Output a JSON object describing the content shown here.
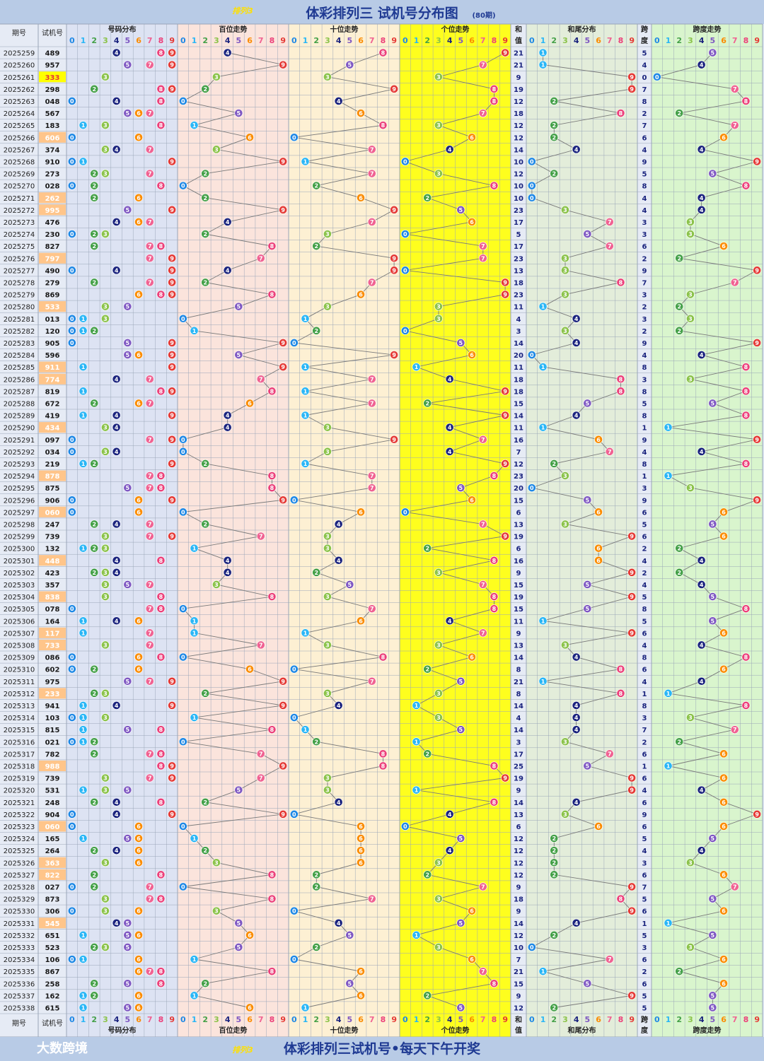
{
  "header": {
    "logo": "排列3",
    "title": "体彩排列三 试机号分布图",
    "subtitle": "(80期)"
  },
  "columns": {
    "period": "期号",
    "trial": "试机号",
    "num_dist": "号码分布",
    "hundreds": "百位走势",
    "tens": "十位走势",
    "units": "个位走势",
    "sum_top": "和",
    "sum_bottom": "值",
    "sum_tail": "和尾分布",
    "span_top": "跨",
    "span_bottom": "度",
    "span_trend": "跨度走势"
  },
  "footer": {
    "brand": "大数跨境",
    "logo": "排列3",
    "slogan": "体彩排列三试机号•每天下午开奖"
  },
  "colors": {
    "digits": [
      "#1e88e5",
      "#29b6f6",
      "#43a047",
      "#8bc34a",
      "#1a237e",
      "#7e57c2",
      "#fb8c00",
      "#f06292",
      "#ec407a",
      "#e53935"
    ],
    "group3_highlight": "#ffc58a",
    "title_bar": "#b8cbe6",
    "num_dist_bg": "#dde3f3",
    "hundreds_bg": "#fbe4dc",
    "tens_bg": "#fdf0d3",
    "units_bg": "#fefe1e",
    "sum_tail_bg": "#e3edda",
    "span_bg": "#d9f5cd"
  },
  "chart_data": {
    "type": "table",
    "title": "体彩排列三 试机号分布图",
    "periods": [
      "2025259",
      "2025260",
      "2025261",
      "2025262",
      "2025263",
      "2025264",
      "2025265",
      "2025266",
      "2025267",
      "2025268",
      "2025269",
      "2025270",
      "2025271",
      "2025272",
      "2025273",
      "2025274",
      "2025275",
      "2025276",
      "2025277",
      "2025278",
      "2025279",
      "2025280",
      "2025281",
      "2025282",
      "2025283",
      "2025284",
      "2025285",
      "2025286",
      "2025287",
      "2025288",
      "2025289",
      "2025290",
      "2025291",
      "2025292",
      "2025293",
      "2025294",
      "2025295",
      "2025296",
      "2025297",
      "2025298",
      "2025299",
      "2025300",
      "2025301",
      "2025302",
      "2025303",
      "2025304",
      "2025305",
      "2025306",
      "2025307",
      "2025308",
      "2025309",
      "2025310",
      "2025311",
      "2025312",
      "2025313",
      "2025314",
      "2025315",
      "2025316",
      "2025317",
      "2025318",
      "2025319",
      "2025320",
      "2025321",
      "2025322",
      "2025323",
      "2025324",
      "2025325",
      "2025326",
      "2025327",
      "2025328",
      "2025329",
      "2025330",
      "2025331",
      "2025332",
      "2025333",
      "2025334",
      "2025335",
      "2025336",
      "2025337",
      "2025338"
    ],
    "trial_numbers": [
      "489",
      "957",
      "333",
      "298",
      "048",
      "567",
      "183",
      "606",
      "374",
      "910",
      "273",
      "028",
      "262",
      "995",
      "476",
      "230",
      "827",
      "797",
      "490",
      "279",
      "869",
      "533",
      "013",
      "120",
      "905",
      "596",
      "911",
      "774",
      "819",
      "672",
      "419",
      "434",
      "097",
      "034",
      "219",
      "878",
      "875",
      "906",
      "060",
      "247",
      "739",
      "132",
      "448",
      "423",
      "357",
      "838",
      "078",
      "164",
      "117",
      "733",
      "086",
      "602",
      "975",
      "233",
      "941",
      "103",
      "815",
      "021",
      "782",
      "988",
      "739",
      "531",
      "248",
      "904",
      "060",
      "165",
      "264",
      "363",
      "822",
      "027",
      "873",
      "306",
      "545",
      "651",
      "523",
      "106",
      "867",
      "258",
      "162",
      "615"
    ],
    "sums": [
      21,
      21,
      9,
      19,
      12,
      18,
      12,
      12,
      14,
      10,
      12,
      10,
      10,
      23,
      17,
      5,
      17,
      23,
      13,
      18,
      23,
      11,
      4,
      3,
      14,
      20,
      11,
      18,
      18,
      15,
      14,
      11,
      16,
      7,
      12,
      23,
      20,
      15,
      6,
      13,
      19,
      6,
      16,
      9,
      15,
      19,
      15,
      11,
      9,
      13,
      14,
      8,
      21,
      8,
      14,
      4,
      14,
      3,
      17,
      25,
      19,
      9,
      14,
      13,
      6,
      12,
      12,
      12,
      12,
      9,
      18,
      9,
      14,
      12,
      10,
      7,
      21,
      15,
      9,
      12
    ],
    "spans": [
      5,
      4,
      0,
      7,
      8,
      2,
      7,
      6,
      4,
      9,
      5,
      8,
      4,
      4,
      3,
      3,
      6,
      2,
      9,
      7,
      3,
      2,
      3,
      2,
      9,
      4,
      8,
      3,
      8,
      5,
      8,
      1,
      9,
      4,
      8,
      1,
      3,
      9,
      6,
      5,
      6,
      2,
      4,
      2,
      4,
      5,
      8,
      5,
      6,
      4,
      8,
      6,
      4,
      1,
      8,
      3,
      7,
      2,
      6,
      1,
      6,
      4,
      6,
      9,
      6,
      5,
      4,
      3,
      6,
      7,
      5,
      6,
      1,
      5,
      3,
      6,
      2,
      6,
      5,
      5
    ]
  }
}
